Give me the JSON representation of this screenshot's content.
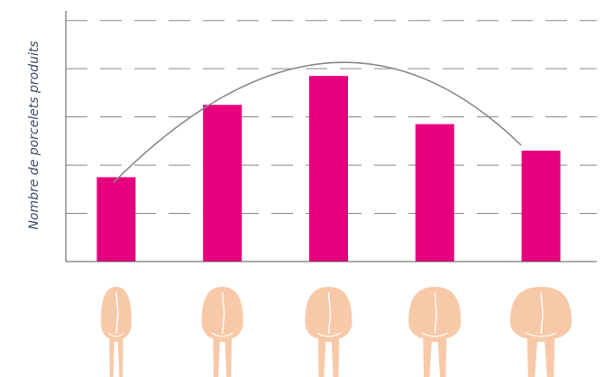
{
  "chart_data": {
    "type": "bar",
    "title": "",
    "xlabel": "",
    "ylabel": "Nombre de porcelets produits",
    "categories": [
      "",
      "",
      "",
      "",
      ""
    ],
    "category_icons": [
      "pig-rear-very-thin-icon",
      "pig-rear-thin-icon",
      "pig-rear-ideal-icon",
      "pig-rear-fat-icon",
      "pig-rear-very-fat-icon"
    ],
    "values": [
      1.75,
      3.25,
      3.85,
      2.85,
      2.3
    ],
    "ylim": [
      0,
      5.2
    ],
    "grid": true,
    "grid_style": "dashed",
    "trend": "curve",
    "bar_color": "#e6007e",
    "trend_color": "#8a8a8a",
    "grid_color": "#888888",
    "axis_color": "#555555",
    "icon_color": "#f7c9a8"
  }
}
